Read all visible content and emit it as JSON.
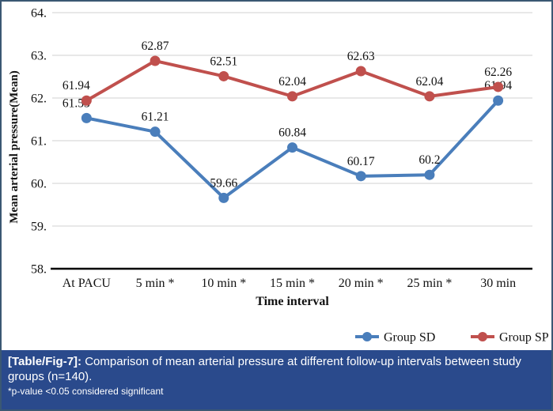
{
  "figure": {
    "border_color": "#3b5873",
    "background": "#ffffff"
  },
  "caption": {
    "background": "#2a4a8c",
    "tag": "[Table/Fig-7]:",
    "text": " Comparison of mean arterial pressure at different follow-up intervals between study groups (n=140).",
    "note": "*p-value <0.05 considered significant"
  },
  "chart_data": {
    "type": "line",
    "categories": [
      "At PACU",
      "5 min *",
      "10 min *",
      "15 min *",
      "20 min *",
      "25 min *",
      "30 min"
    ],
    "series": [
      {
        "name": "Group SD",
        "color": "#4a7ebb",
        "values": [
          61.53,
          61.21,
          59.66,
          60.84,
          60.17,
          60.2,
          61.94
        ],
        "labels": [
          "61.53",
          "61.21",
          "59.66",
          "60.84",
          "60.17",
          "60.2",
          "61.94"
        ]
      },
      {
        "name": "Group SP",
        "color": "#c0504d",
        "values": [
          61.94,
          62.87,
          62.51,
          62.04,
          62.63,
          62.04,
          62.26
        ],
        "labels": [
          "61.94",
          "62.87",
          "62.51",
          "62.04",
          "62.63",
          "62.04",
          "62.26"
        ]
      }
    ],
    "title": "",
    "xlabel": "Time interval",
    "ylabel": "Mean arterial pressure(Mean)",
    "ylim": [
      58,
      64
    ],
    "ytick_step": 1,
    "ytick_labels": [
      "58.",
      "59.",
      "60.",
      "61.",
      "62.",
      "63.",
      "64."
    ],
    "grid": true,
    "data_labels": true,
    "legend_position": "bottom-right",
    "colors": {
      "gridline": "#d9d9d9",
      "axis_line": "#000000",
      "text": "#111111"
    }
  }
}
